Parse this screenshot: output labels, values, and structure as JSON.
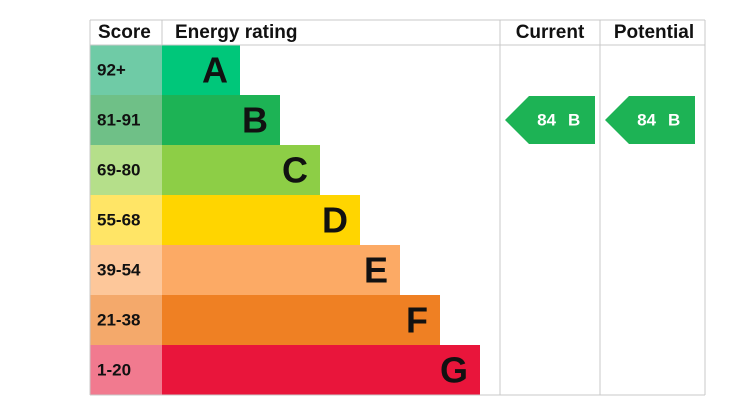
{
  "headers": {
    "score": "Score",
    "rating": "Energy rating",
    "current": "Current",
    "potential": "Potential"
  },
  "rows": [
    {
      "score": "92+",
      "letter": "A",
      "color": "#00c77a",
      "score_color": "#6fcba6"
    },
    {
      "score": "81-91",
      "letter": "B",
      "color": "#1db355",
      "score_color": "#6fc087"
    },
    {
      "score": "69-80",
      "letter": "C",
      "color": "#8dce46",
      "score_color": "#b5df8a"
    },
    {
      "score": "55-68",
      "letter": "D",
      "color": "#ffd500",
      "score_color": "#ffe566"
    },
    {
      "score": "39-54",
      "letter": "E",
      "color": "#fcaa65",
      "score_color": "#fdc79a"
    },
    {
      "score": "21-38",
      "letter": "F",
      "color": "#ef8023",
      "score_color": "#f4a96b"
    },
    {
      "score": "1-20",
      "letter": "G",
      "color": "#e9153b",
      "score_color": "#f17a8f"
    }
  ],
  "current": {
    "value": 84,
    "letter": "B"
  },
  "potential": {
    "value": 84,
    "letter": "B"
  }
}
